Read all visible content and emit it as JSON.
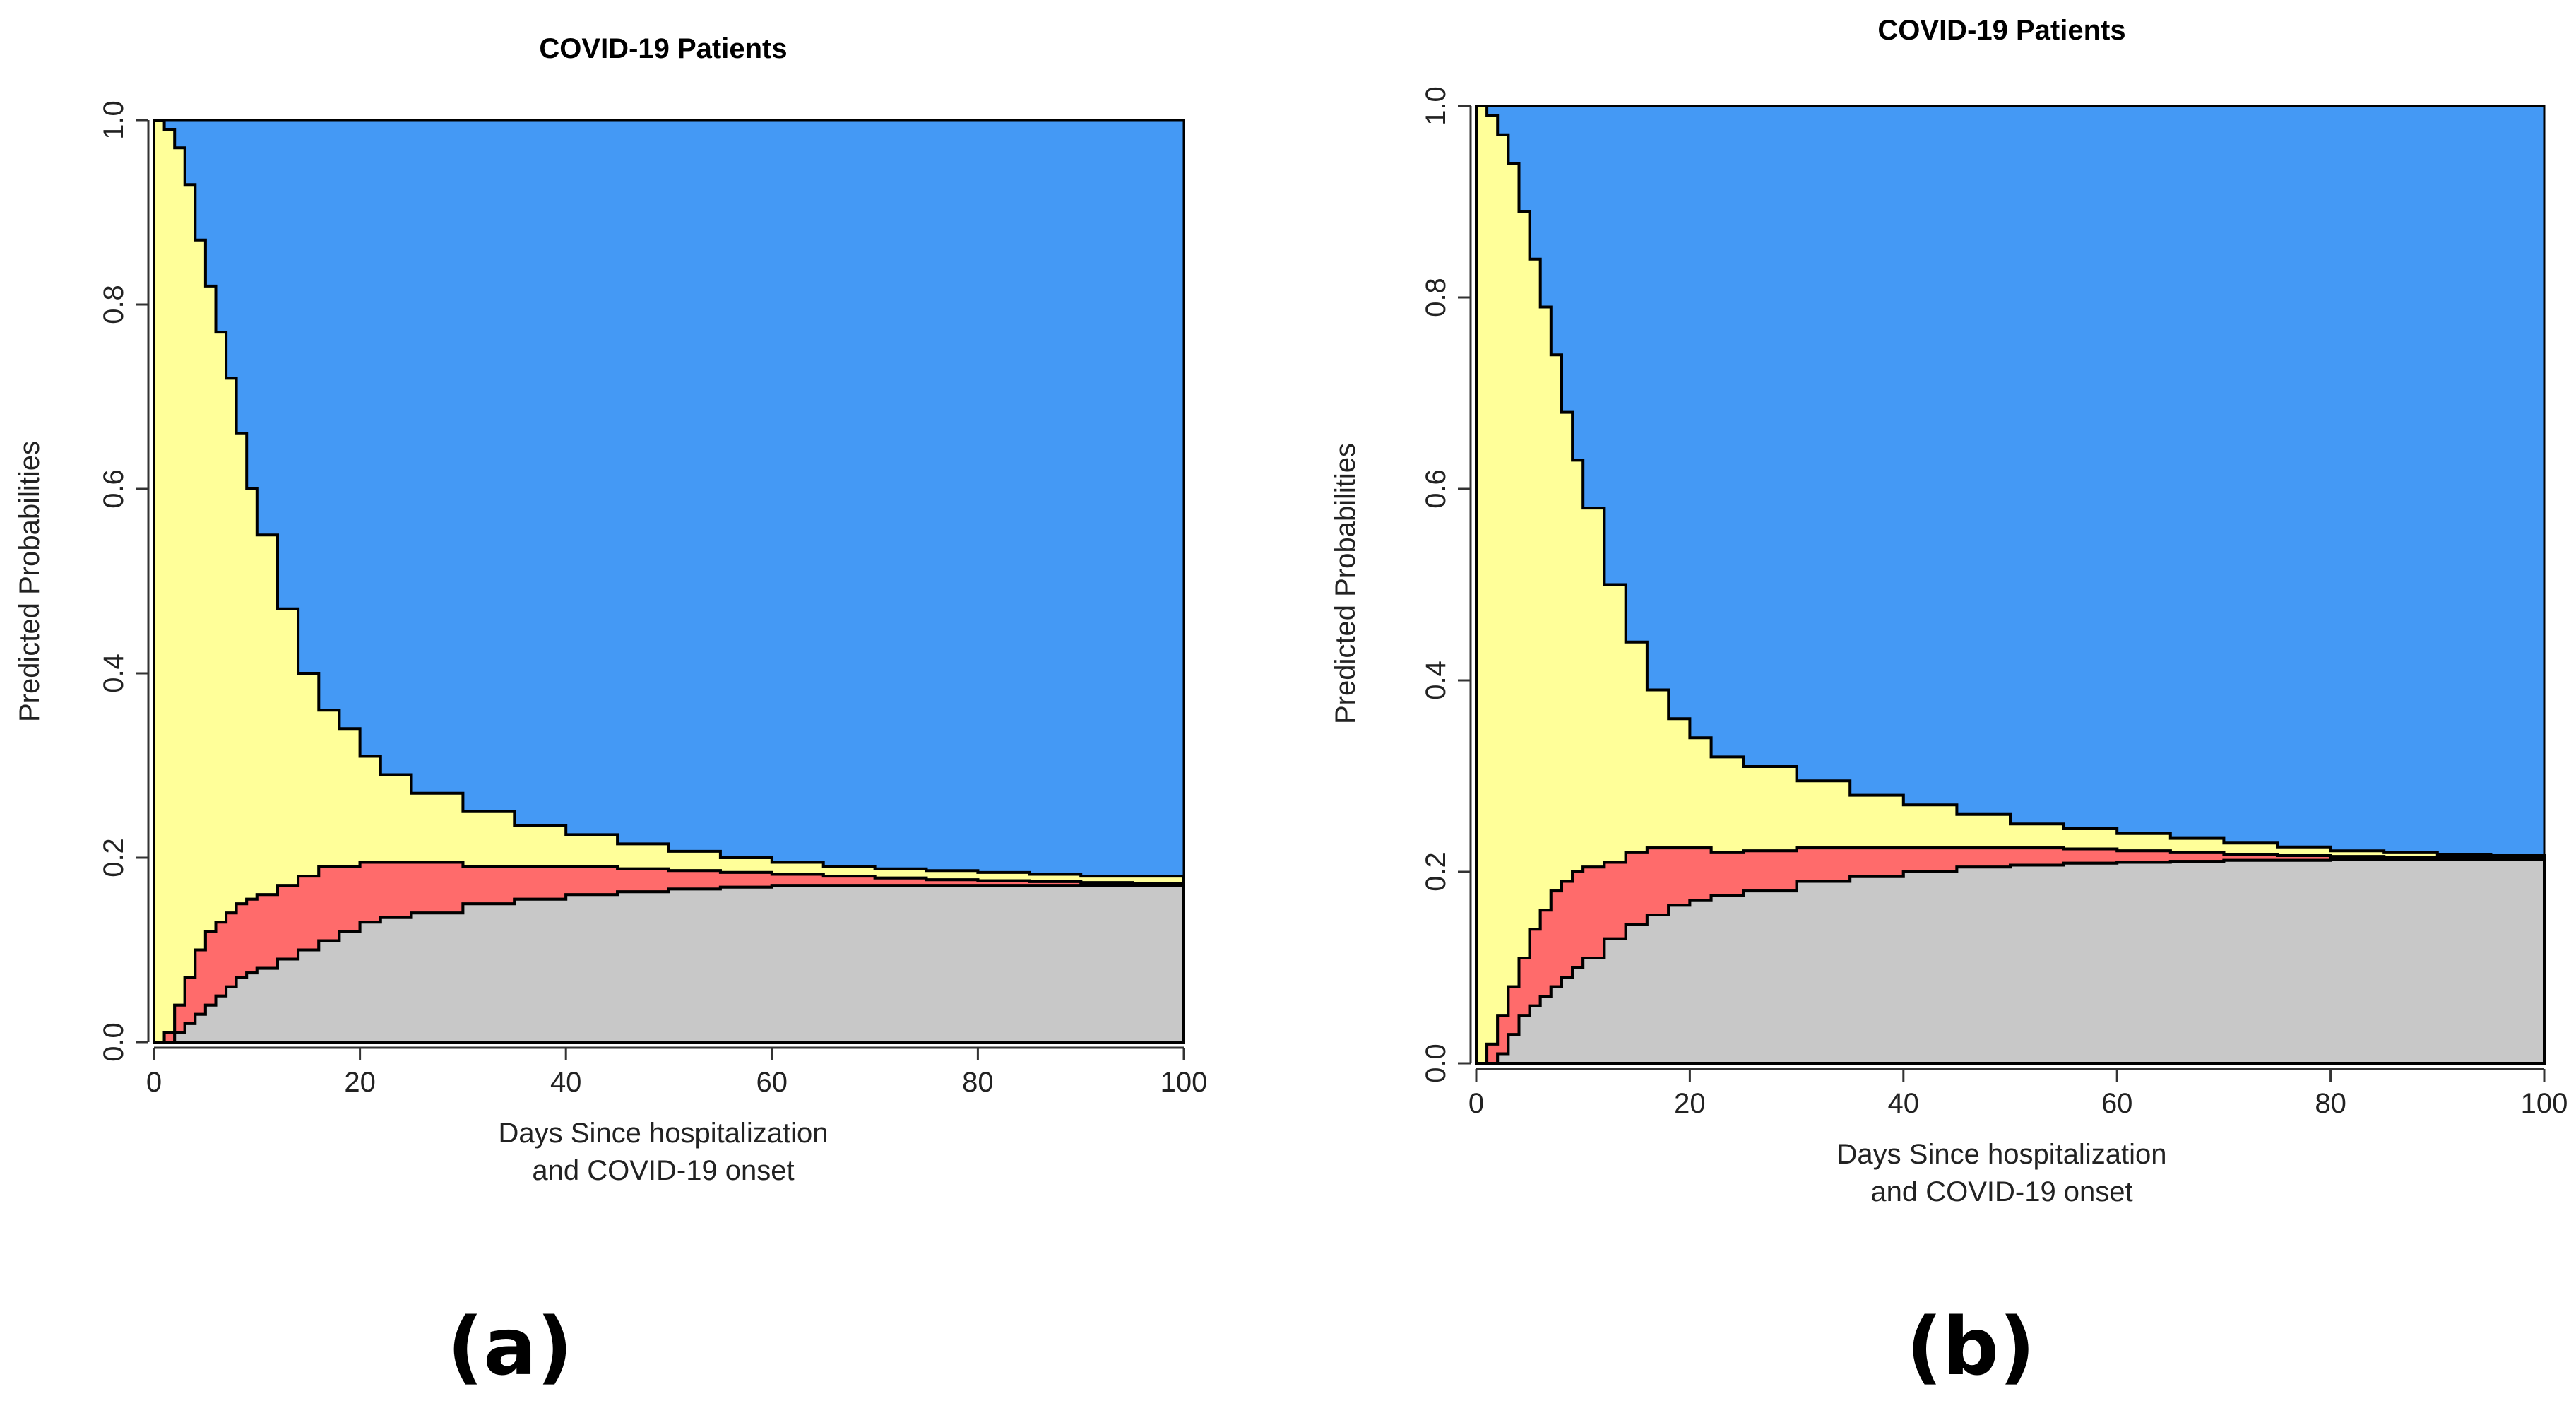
{
  "figure": {
    "colors": {
      "blue": "#4499F5",
      "yellow": "#FFFF99",
      "red": "#FF6B6B",
      "gray": "#C8C8C8",
      "outline": "#000000"
    }
  },
  "chart_data": [
    {
      "type": "area",
      "panel_label": "(a)",
      "title": "COVID-19 Patients",
      "xlabel_line1": "Days Since hospitalization",
      "xlabel_line2": "and COVID-19 onset",
      "ylabel": "Predicted Probabilities",
      "xlim": [
        0,
        100
      ],
      "ylim": [
        0,
        1
      ],
      "x_ticks": [
        0,
        20,
        40,
        60,
        80,
        100
      ],
      "y_ticks": [
        0.0,
        0.2,
        0.4,
        0.6,
        0.8,
        1.0
      ],
      "x_tick_labels": [
        "0",
        "20",
        "40",
        "60",
        "80",
        "100"
      ],
      "y_tick_labels": [
        "0.0",
        "0.2",
        "0.4",
        "0.6",
        "0.8",
        "1.0"
      ],
      "stacked_boundaries": {
        "x": [
          0,
          1,
          2,
          3,
          4,
          5,
          6,
          7,
          8,
          9,
          10,
          12,
          14,
          16,
          18,
          20,
          22,
          25,
          30,
          35,
          40,
          45,
          50,
          55,
          60,
          65,
          70,
          75,
          80,
          85,
          90,
          95,
          100
        ],
        "gray_top": [
          0,
          0,
          0.01,
          0.02,
          0.03,
          0.04,
          0.05,
          0.06,
          0.07,
          0.075,
          0.08,
          0.09,
          0.1,
          0.11,
          0.12,
          0.13,
          0.135,
          0.14,
          0.15,
          0.155,
          0.16,
          0.163,
          0.166,
          0.168,
          0.17,
          0.17,
          0.17,
          0.17,
          0.17,
          0.17,
          0.17,
          0.17,
          0.17
        ],
        "red_top": [
          0,
          0.01,
          0.04,
          0.07,
          0.1,
          0.12,
          0.13,
          0.14,
          0.15,
          0.155,
          0.16,
          0.17,
          0.18,
          0.19,
          0.19,
          0.195,
          0.195,
          0.195,
          0.19,
          0.19,
          0.19,
          0.188,
          0.186,
          0.184,
          0.182,
          0.18,
          0.178,
          0.176,
          0.175,
          0.174,
          0.173,
          0.172,
          0.172
        ],
        "yellow_top": [
          1.0,
          0.99,
          0.97,
          0.93,
          0.87,
          0.82,
          0.77,
          0.72,
          0.66,
          0.6,
          0.55,
          0.47,
          0.4,
          0.36,
          0.34,
          0.31,
          0.29,
          0.27,
          0.25,
          0.235,
          0.225,
          0.215,
          0.207,
          0.2,
          0.195,
          0.19,
          0.188,
          0.186,
          0.184,
          0.182,
          0.18,
          0.18,
          0.18
        ]
      },
      "state_colors": [
        "blue",
        "yellow",
        "red",
        "gray"
      ]
    },
    {
      "type": "area",
      "panel_label": "(b)",
      "title": "COVID-19 Patients",
      "xlabel_line1": "Days Since hospitalization",
      "xlabel_line2": "and COVID-19 onset",
      "ylabel": "Predicted Probabilities",
      "xlim": [
        0,
        100
      ],
      "ylim": [
        0,
        1
      ],
      "x_ticks": [
        0,
        20,
        40,
        60,
        80,
        100
      ],
      "y_ticks": [
        0.0,
        0.2,
        0.4,
        0.6,
        0.8,
        1.0
      ],
      "x_tick_labels": [
        "0",
        "20",
        "40",
        "60",
        "80",
        "100"
      ],
      "y_tick_labels": [
        "0.0",
        "0.2",
        "0.4",
        "0.6",
        "0.8",
        "1.0"
      ],
      "stacked_boundaries": {
        "x": [
          0,
          1,
          2,
          3,
          4,
          5,
          6,
          7,
          8,
          9,
          10,
          12,
          14,
          16,
          18,
          20,
          22,
          25,
          30,
          35,
          40,
          45,
          50,
          55,
          60,
          65,
          70,
          75,
          80,
          85,
          90,
          95,
          100
        ],
        "gray_top": [
          0,
          0,
          0.01,
          0.03,
          0.05,
          0.06,
          0.07,
          0.08,
          0.09,
          0.1,
          0.11,
          0.13,
          0.145,
          0.155,
          0.165,
          0.17,
          0.175,
          0.18,
          0.19,
          0.195,
          0.2,
          0.205,
          0.207,
          0.209,
          0.21,
          0.211,
          0.212,
          0.212,
          0.213,
          0.213,
          0.213,
          0.213,
          0.213
        ],
        "red_top": [
          0,
          0.02,
          0.05,
          0.08,
          0.11,
          0.14,
          0.16,
          0.18,
          0.19,
          0.2,
          0.205,
          0.21,
          0.22,
          0.225,
          0.225,
          0.225,
          0.22,
          0.222,
          0.225,
          0.225,
          0.225,
          0.225,
          0.225,
          0.224,
          0.222,
          0.22,
          0.218,
          0.217,
          0.216,
          0.215,
          0.215,
          0.215,
          0.215
        ],
        "yellow_top": [
          1.0,
          0.99,
          0.97,
          0.94,
          0.89,
          0.84,
          0.79,
          0.74,
          0.68,
          0.63,
          0.58,
          0.5,
          0.44,
          0.39,
          0.36,
          0.34,
          0.32,
          0.31,
          0.295,
          0.28,
          0.27,
          0.26,
          0.25,
          0.245,
          0.24,
          0.235,
          0.23,
          0.226,
          0.222,
          0.22,
          0.218,
          0.217,
          0.217
        ]
      },
      "state_colors": [
        "blue",
        "yellow",
        "red",
        "gray"
      ]
    }
  ]
}
